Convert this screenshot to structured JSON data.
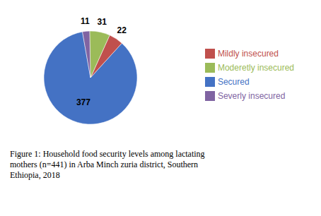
{
  "chart_data": {
    "type": "pie",
    "title": "Figure 1: Household food security levels among lactating\nmothers (n=441) in Arba Minch zuria district, Southern\nEthiopia, 2018",
    "categories": [
      "Secured",
      "Mildly insecured",
      "Moderetly insecured",
      "Severly insecured"
    ],
    "values": [
      377,
      22,
      31,
      11
    ],
    "colors": [
      "#4472C4",
      "#C0504D",
      "#9BBB59",
      "#8064A2"
    ],
    "data_labels": true,
    "legend": "right"
  }
}
